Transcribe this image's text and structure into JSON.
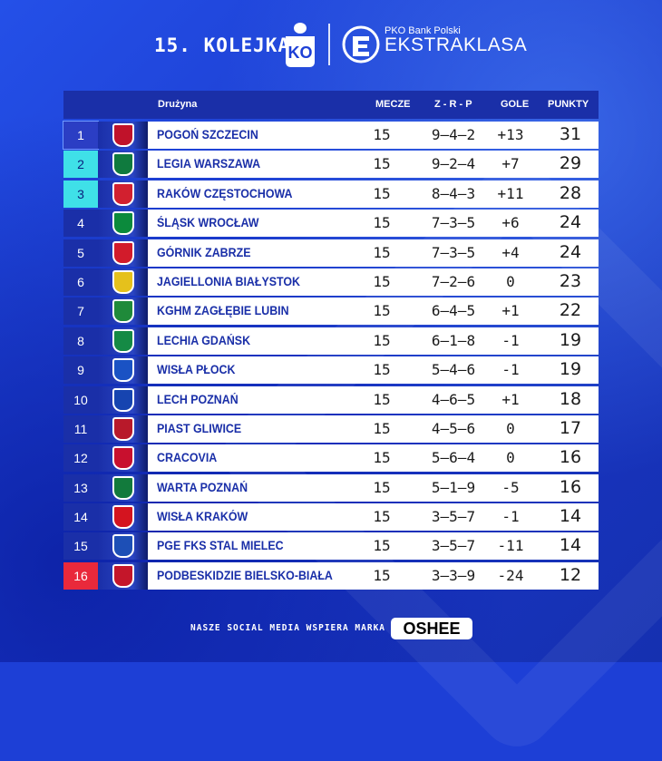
{
  "header": {
    "round": "15. KOLEJKA",
    "league_sub": "PKO Bank Polski",
    "league_main": "EKSTRAKLASA"
  },
  "columns": {
    "team": "Drużyna",
    "played": "MECZE",
    "wdl": "Z - R - P",
    "goals": "GOLE",
    "points": "PUNKTY"
  },
  "rows": [
    {
      "pos": "1",
      "team": "POGOŃ SZCZECIN",
      "played": "15",
      "wdl": "9–4–2",
      "goals": "+13",
      "points": "31",
      "zone": "cl",
      "crest": "#c0122a"
    },
    {
      "pos": "2",
      "team": "LEGIA WARSZAWA",
      "played": "15",
      "wdl": "9–2–4",
      "goals": "+7",
      "points": "29",
      "zone": "cup",
      "crest": "#0f7a3e"
    },
    {
      "pos": "3",
      "team": "RAKÓW CZĘSTOCHOWA",
      "played": "15",
      "wdl": "8–4–3",
      "goals": "+11",
      "points": "28",
      "zone": "cup",
      "crest": "#d2202f"
    },
    {
      "pos": "4",
      "team": "ŚLĄSK WROCŁAW",
      "played": "15",
      "wdl": "7–3–5",
      "goals": "+6",
      "points": "24",
      "zone": "",
      "crest": "#0b8a3c"
    },
    {
      "pos": "5",
      "team": "GÓRNIK ZABRZE",
      "played": "15",
      "wdl": "7–3–5",
      "goals": "+4",
      "points": "24",
      "zone": "",
      "crest": "#d21b2b"
    },
    {
      "pos": "6",
      "team": "JAGIELLONIA BIAŁYSTOK",
      "played": "15",
      "wdl": "7–2–6",
      "goals": "0",
      "points": "23",
      "zone": "",
      "crest": "#e5c11c"
    },
    {
      "pos": "7",
      "team": "KGHM ZAGŁĘBIE LUBIN",
      "played": "15",
      "wdl": "6–4–5",
      "goals": "+1",
      "points": "22",
      "zone": "",
      "crest": "#1f8a3a"
    },
    {
      "pos": "8",
      "team": "LECHIA GDAŃSK",
      "played": "15",
      "wdl": "6–1–8",
      "goals": "-1",
      "points": "19",
      "zone": "",
      "crest": "#158a45"
    },
    {
      "pos": "9",
      "team": "WISŁA PŁOCK",
      "played": "15",
      "wdl": "5–4–6",
      "goals": "-1",
      "points": "19",
      "zone": "",
      "crest": "#1a52c4"
    },
    {
      "pos": "10",
      "team": "LECH POZNAŃ",
      "played": "15",
      "wdl": "4–6–5",
      "goals": "+1",
      "points": "18",
      "zone": "",
      "crest": "#1644b0"
    },
    {
      "pos": "11",
      "team": "PIAST GLIWICE",
      "played": "15",
      "wdl": "4–5–6",
      "goals": "0",
      "points": "17",
      "zone": "",
      "crest": "#b8192a"
    },
    {
      "pos": "12",
      "team": "CRACOVIA",
      "played": "15",
      "wdl": "5–6–4",
      "goals": "0",
      "points": "16",
      "zone": "",
      "crest": "#c8102e"
    },
    {
      "pos": "13",
      "team": "WARTA POZNAŃ",
      "played": "15",
      "wdl": "5–1–9",
      "goals": "-5",
      "points": "16",
      "zone": "",
      "crest": "#127a3c"
    },
    {
      "pos": "14",
      "team": "WISŁA KRAKÓW",
      "played": "15",
      "wdl": "3–5–7",
      "goals": "-1",
      "points": "14",
      "zone": "",
      "crest": "#d4141f"
    },
    {
      "pos": "15",
      "team": "PGE FKS STAL MIELEC",
      "played": "15",
      "wdl": "3–5–7",
      "goals": "-11",
      "points": "14",
      "zone": "",
      "crest": "#1d4fb6"
    },
    {
      "pos": "16",
      "team": "PODBESKIDZIE BIELSKO-BIAŁA",
      "played": "15",
      "wdl": "3–3–9",
      "goals": "-24",
      "points": "12",
      "zone": "rel",
      "crest": "#c4162a"
    }
  ],
  "footer": {
    "text": "NASZE SOCIAL MEDIA WSPIERA MARKA",
    "sponsor": "OSHEE"
  }
}
